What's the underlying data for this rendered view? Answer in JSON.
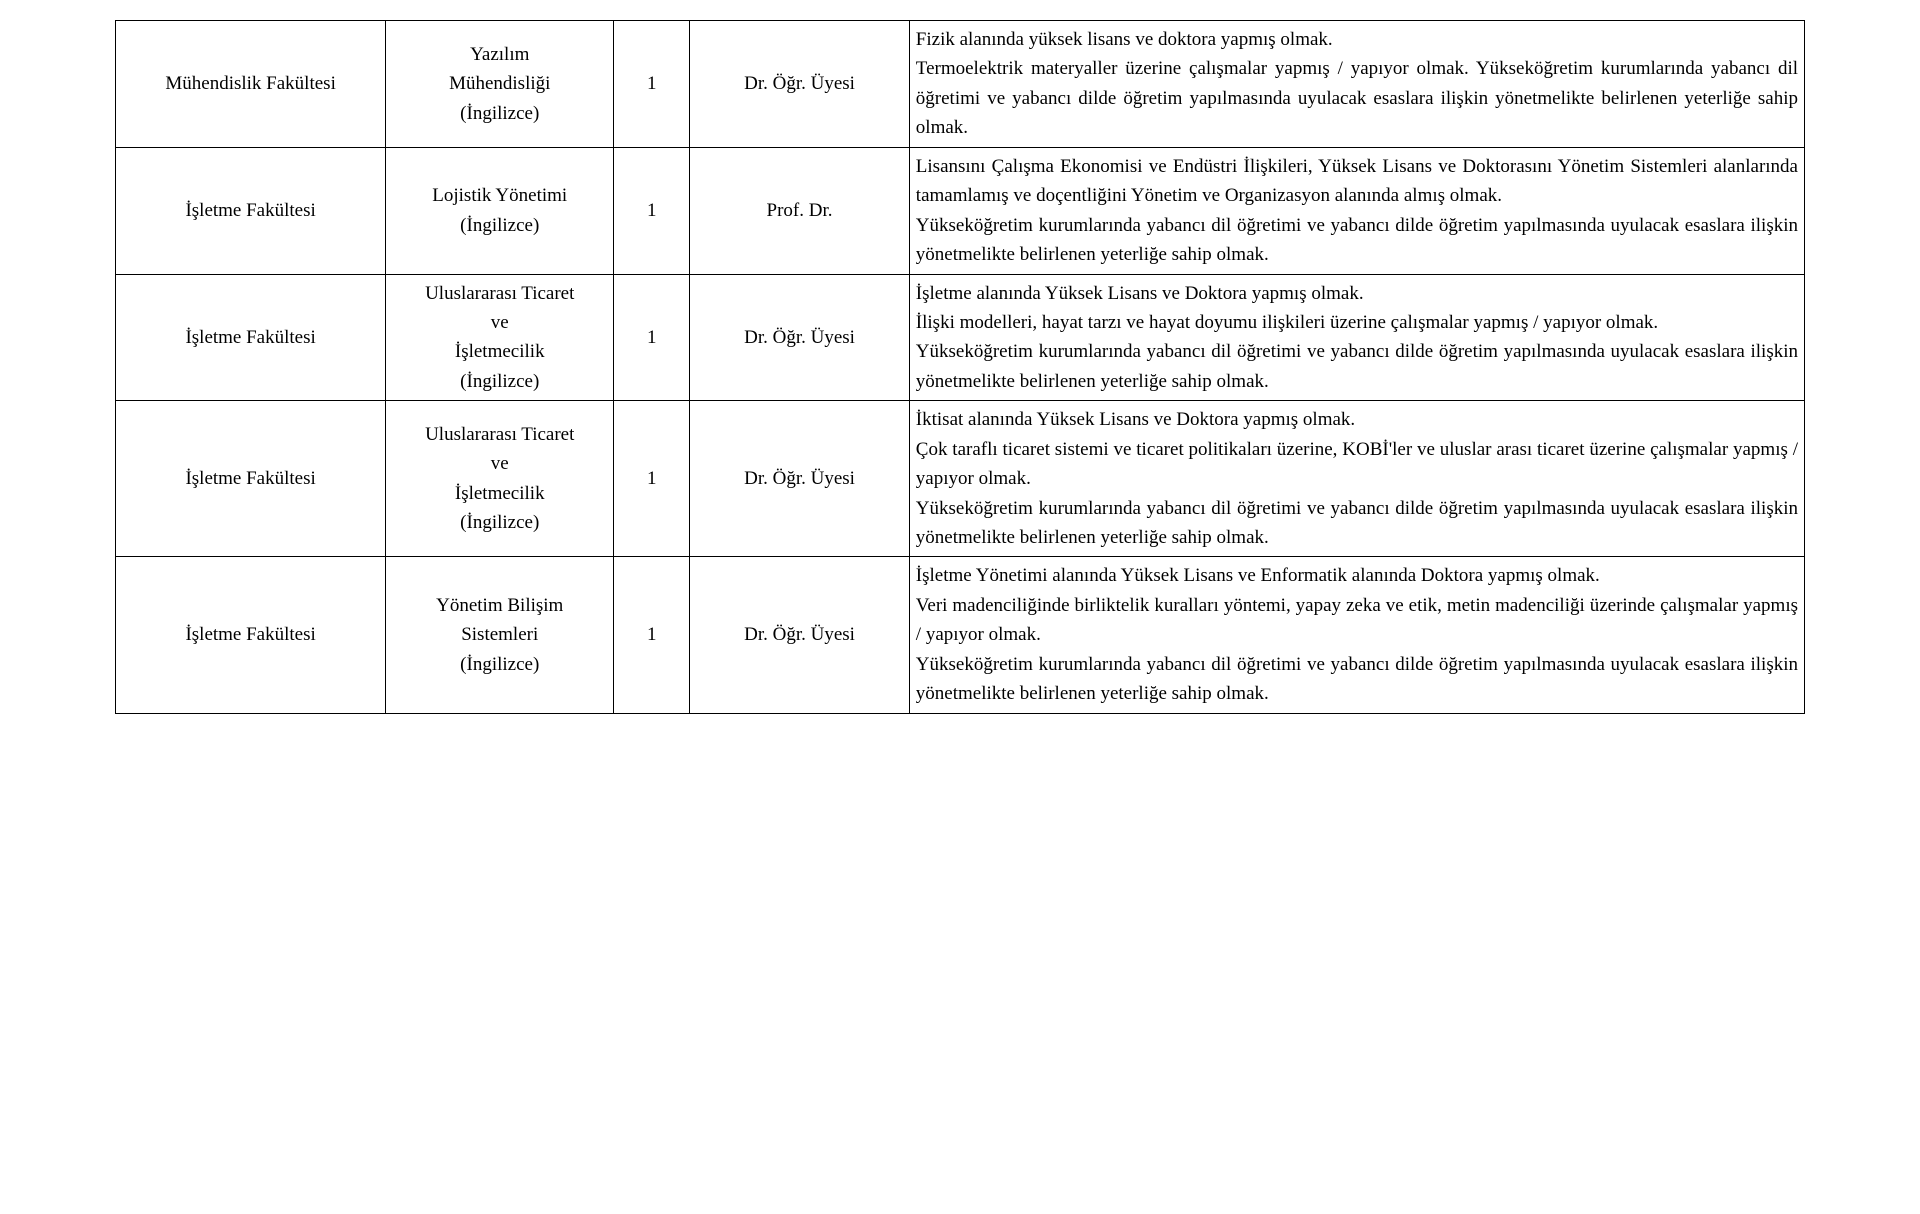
{
  "table": {
    "type": "table",
    "border_color": "#000000",
    "background_color": "#ffffff",
    "text_color": "#000000",
    "font_family": "Times New Roman",
    "font_size_pt": 14,
    "columns": [
      {
        "key": "faculty",
        "width_pct": 16.0,
        "align": "center"
      },
      {
        "key": "department",
        "width_pct": 13.5,
        "align": "center"
      },
      {
        "key": "count",
        "width_pct": 4.5,
        "align": "center"
      },
      {
        "key": "title",
        "width_pct": 13.0,
        "align": "center"
      },
      {
        "key": "requirements",
        "width_pct": 53.0,
        "align": "justify"
      }
    ],
    "rows": [
      {
        "faculty": "Mühendislik Fakültesi",
        "department_l1": "Yazılım",
        "department_l2": "Mühendisliği",
        "department_l3": "(İngilizce)",
        "count": "1",
        "title": "Dr. Öğr. Üyesi",
        "requirements": "Fizik alanında yüksek lisans ve doktora yapmış olmak.\nTermoelektrik materyaller üzerine çalışmalar yapmış / yapıyor olmak. Yükseköğretim kurumlarında yabancı dil öğretimi ve yabancı dilde öğretim yapılmasında uyulacak esaslara ilişkin yönetmelikte belirlenen yeterliğe sahip olmak."
      },
      {
        "faculty": "İşletme Fakültesi",
        "department_l1": "Lojistik Yönetimi",
        "department_l2": "(İngilizce)",
        "department_l3": "",
        "count": "1",
        "title": "Prof. Dr.",
        "requirements": "Lisansını Çalışma Ekonomisi ve Endüstri İlişkileri, Yüksek Lisans ve Doktorasını Yönetim Sistemleri alanlarında tamamlamış ve doçentliğini Yönetim ve Organizasyon alanında almış olmak.\nYükseköğretim kurumlarında yabancı dil öğretimi ve yabancı dilde öğretim yapılmasında uyulacak esaslara ilişkin yönetmelikte belirlenen yeterliğe sahip olmak."
      },
      {
        "faculty": "İşletme Fakültesi",
        "department_l1": "Uluslararası Ticaret",
        "department_l2": "ve",
        "department_l3": "İşletmecilik",
        "department_l4": "(İngilizce)",
        "count": "1",
        "title": "Dr. Öğr. Üyesi",
        "requirements": "İşletme alanında Yüksek Lisans ve Doktora yapmış olmak.\nİlişki modelleri, hayat tarzı ve hayat doyumu ilişkileri üzerine çalışmalar yapmış / yapıyor olmak.\nYükseköğretim kurumlarında yabancı dil öğretimi ve yabancı dilde öğretim yapılmasında uyulacak esaslara ilişkin yönetmelikte belirlenen yeterliğe sahip olmak."
      },
      {
        "faculty": "İşletme Fakültesi",
        "department_l1": "Uluslararası Ticaret",
        "department_l2": "ve",
        "department_l3": "İşletmecilik",
        "department_l4": "(İngilizce)",
        "count": "1",
        "title": "Dr. Öğr. Üyesi",
        "requirements": "İktisat alanında Yüksek Lisans ve Doktora yapmış olmak.\nÇok taraflı ticaret sistemi ve ticaret politikaları üzerine, KOBİ'ler ve uluslar arası ticaret üzerine çalışmalar yapmış / yapıyor olmak.\nYükseköğretim kurumlarında yabancı dil öğretimi ve yabancı dilde öğretim yapılmasında uyulacak esaslara ilişkin yönetmelikte belirlenen yeterliğe sahip olmak."
      },
      {
        "faculty": "İşletme Fakültesi",
        "department_l1": "Yönetim Bilişim",
        "department_l2": "Sistemleri",
        "department_l3": "(İngilizce)",
        "department_l4": "",
        "count": "1",
        "title": "Dr. Öğr. Üyesi",
        "requirements": "İşletme Yönetimi alanında Yüksek Lisans ve Enformatik alanında Doktora yapmış olmak.\nVeri madenciliğinde birliktelik kuralları yöntemi, yapay zeka ve etik, metin madenciliği üzerinde çalışmalar yapmış / yapıyor olmak.\nYükseköğretim kurumlarında yabancı dil öğretimi ve yabancı dilde öğretim yapılmasında uyulacak esaslara ilişkin yönetmelikte belirlenen yeterliğe sahip olmak."
      }
    ]
  }
}
